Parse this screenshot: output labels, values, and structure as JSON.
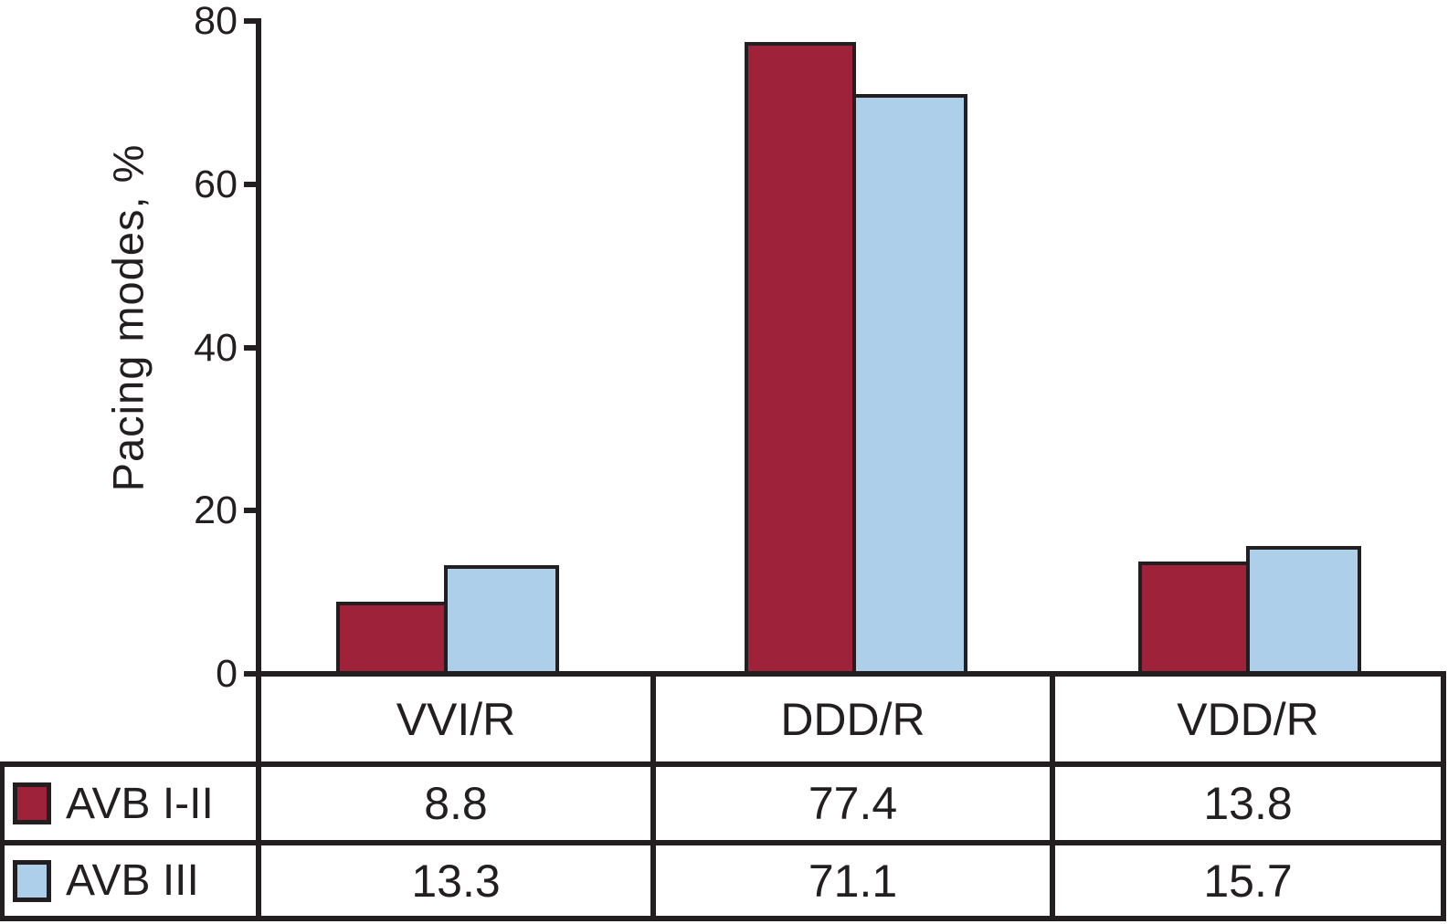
{
  "chart_data": {
    "type": "bar",
    "title": "",
    "ylabel": "Pacing modes, %",
    "xlabel": "",
    "categories": [
      "VVI/R",
      "DDD/R",
      "VDD/R"
    ],
    "series": [
      {
        "name": "AVB I-II",
        "color": "#9E2239",
        "values": [
          8.8,
          77.4,
          13.8
        ]
      },
      {
        "name": "AVB III",
        "color": "#AECFEA",
        "values": [
          13.3,
          71.1,
          15.7
        ]
      }
    ],
    "ylim": [
      0,
      80
    ],
    "yticks": [
      0,
      20,
      40,
      60,
      80
    ],
    "grid": false,
    "legend_position": "table-rows-below-chart",
    "axis_color": "#231F20",
    "bar_border_color": "#231F20"
  },
  "table": {
    "column_headers": [
      "VVI/R",
      "DDD/R",
      "VDD/R"
    ],
    "rows": [
      {
        "label": "AVB I-II",
        "values": [
          "8.8",
          "77.4",
          "13.8"
        ]
      },
      {
        "label": "AVB III",
        "values": [
          "13.3",
          "71.1",
          "15.7"
        ]
      }
    ]
  }
}
